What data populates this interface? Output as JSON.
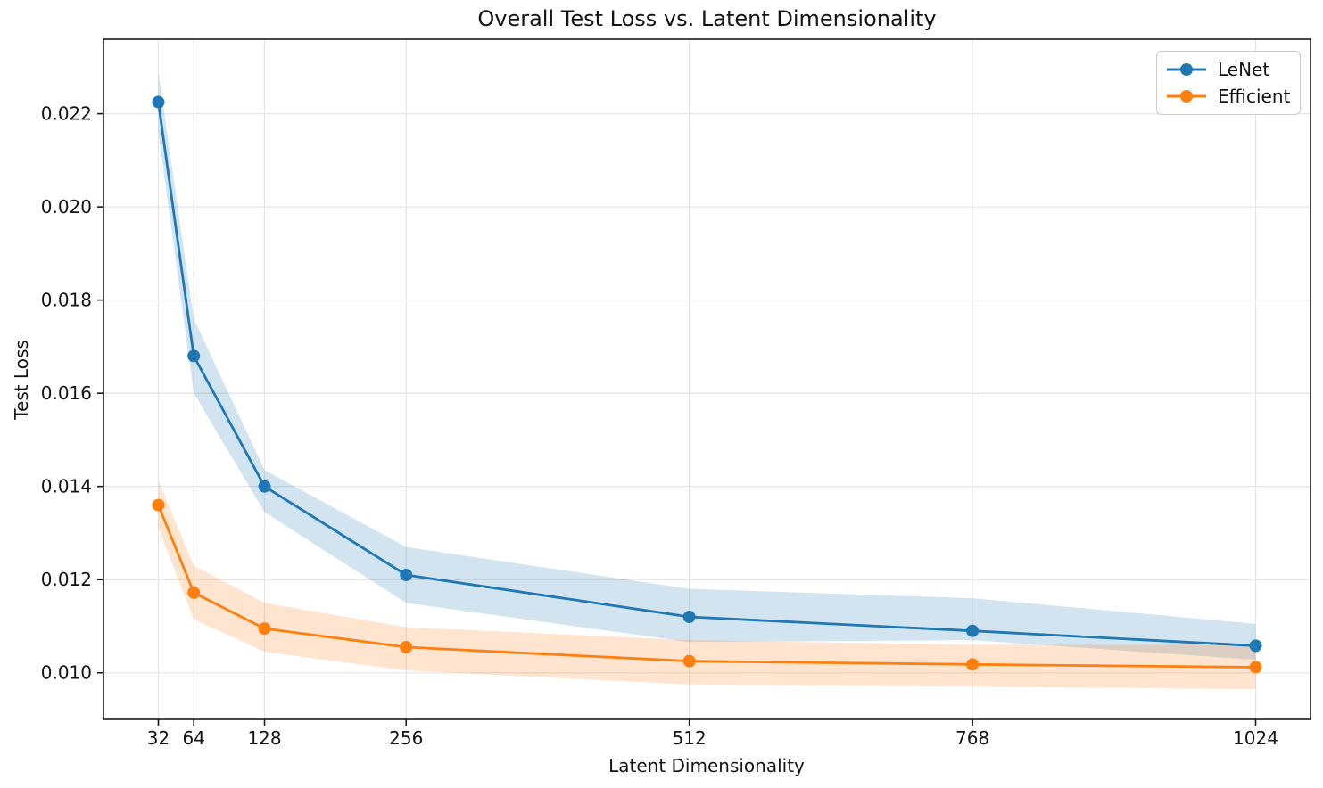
{
  "chart_data": {
    "type": "line",
    "title": "Overall Test Loss vs. Latent Dimensionality",
    "xlabel": "Latent Dimensionality",
    "ylabel": "Test Loss",
    "x": [
      32,
      64,
      128,
      256,
      512,
      768,
      1024
    ],
    "series": [
      {
        "name": "LeNet",
        "color": "#1f77b4",
        "values": [
          0.02225,
          0.0168,
          0.014,
          0.0121,
          0.0112,
          0.0109,
          0.01058
        ],
        "band_lower": [
          0.0216,
          0.016,
          0.01345,
          0.0115,
          0.01066,
          0.0107,
          0.01028
        ],
        "band_upper": [
          0.0229,
          0.0176,
          0.01435,
          0.0127,
          0.0118,
          0.0116,
          0.01105
        ]
      },
      {
        "name": "Efficient",
        "color": "#ff7f0e",
        "values": [
          0.0136,
          0.01172,
          0.01095,
          0.01055,
          0.01025,
          0.01018,
          0.01012
        ],
        "band_lower": [
          0.0131,
          0.01115,
          0.01045,
          0.01005,
          0.00975,
          0.0097,
          0.00965
        ],
        "band_upper": [
          0.01412,
          0.0123,
          0.0115,
          0.01098,
          0.0107,
          0.0106,
          0.0106
        ]
      }
    ],
    "band_alpha": 0.2,
    "xlim": [
      -17.6,
      1073.6
    ],
    "ylim": [
      0.009,
      0.0236
    ],
    "xtick_labels": [
      "32",
      "64",
      "128",
      "256",
      "512",
      "768",
      "1024"
    ],
    "ytick_values": [
      0.01,
      0.012,
      0.014,
      0.016,
      0.018,
      0.02,
      0.022
    ],
    "ytick_labels": [
      "0.010",
      "0.012",
      "0.014",
      "0.016",
      "0.018",
      "0.020",
      "0.022"
    ],
    "grid": true,
    "legend": {
      "position": "upper right",
      "entries": [
        "LeNet",
        "Efficient"
      ]
    }
  },
  "colors": {
    "background": "#ffffff",
    "grid": "#e6e6e6",
    "spine": "#1a1a1a",
    "tick_text": "#141414",
    "legend_border": "#cccccc"
  }
}
